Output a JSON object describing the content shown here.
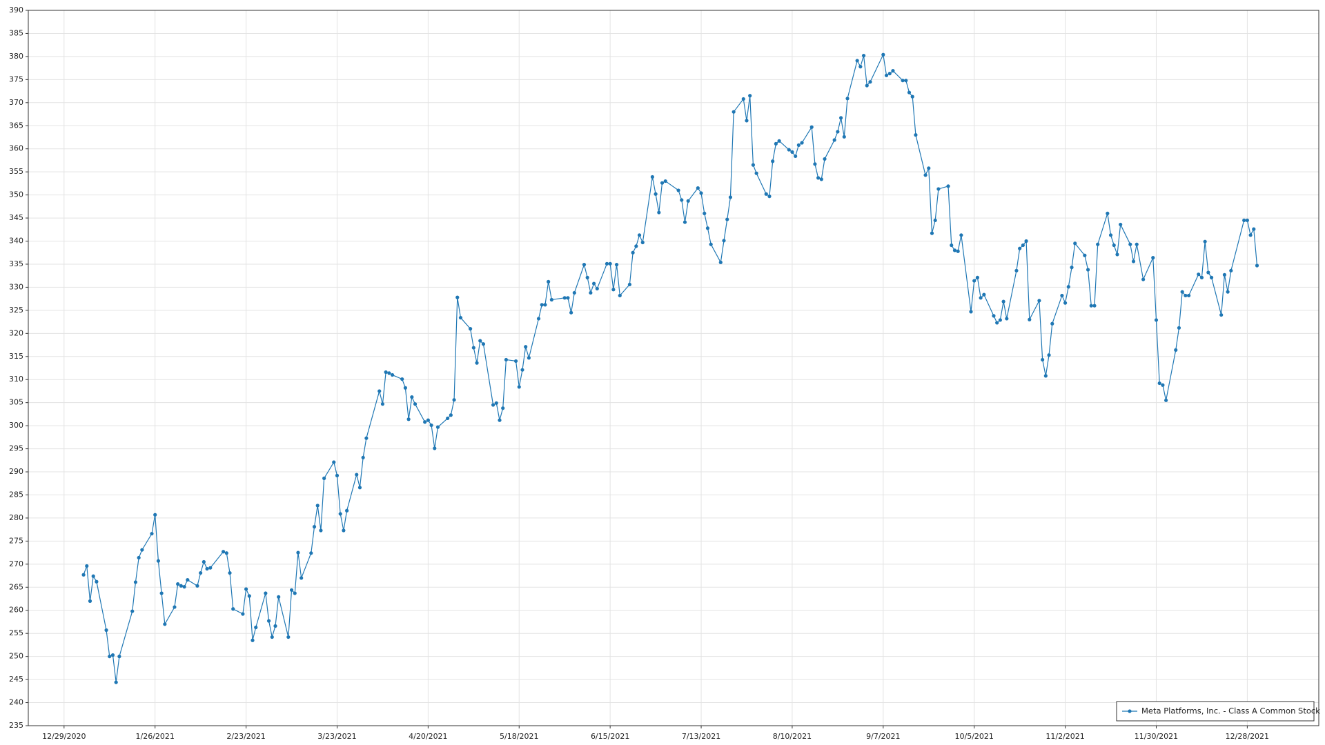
{
  "chart_data": {
    "type": "line",
    "x": [
      "1/4/2021",
      "1/5/2021",
      "1/6/2021",
      "1/7/2021",
      "1/8/2021",
      "1/11/2021",
      "1/12/2021",
      "1/13/2021",
      "1/14/2021",
      "1/15/2021",
      "1/19/2021",
      "1/20/2021",
      "1/21/2021",
      "1/22/2021",
      "1/25/2021",
      "1/26/2021",
      "1/27/2021",
      "1/28/2021",
      "1/29/2021",
      "2/1/2021",
      "2/2/2021",
      "2/3/2021",
      "2/4/2021",
      "2/5/2021",
      "2/8/2021",
      "2/9/2021",
      "2/10/2021",
      "2/11/2021",
      "2/12/2021",
      "2/16/2021",
      "2/17/2021",
      "2/18/2021",
      "2/19/2021",
      "2/22/2021",
      "2/23/2021",
      "2/24/2021",
      "2/25/2021",
      "2/26/2021",
      "3/1/2021",
      "3/2/2021",
      "3/3/2021",
      "3/4/2021",
      "3/5/2021",
      "3/8/2021",
      "3/9/2021",
      "3/10/2021",
      "3/11/2021",
      "3/12/2021",
      "3/15/2021",
      "3/16/2021",
      "3/17/2021",
      "3/18/2021",
      "3/19/2021",
      "3/22/2021",
      "3/23/2021",
      "3/24/2021",
      "3/25/2021",
      "3/26/2021",
      "3/29/2021",
      "3/30/2021",
      "3/31/2021",
      "4/1/2021",
      "4/5/2021",
      "4/6/2021",
      "4/7/2021",
      "4/8/2021",
      "4/9/2021",
      "4/12/2021",
      "4/13/2021",
      "4/14/2021",
      "4/15/2021",
      "4/16/2021",
      "4/19/2021",
      "4/20/2021",
      "4/21/2021",
      "4/22/2021",
      "4/23/2021",
      "4/26/2021",
      "4/27/2021",
      "4/28/2021",
      "4/29/2021",
      "4/30/2021",
      "5/3/2021",
      "5/4/2021",
      "5/5/2021",
      "5/6/2021",
      "5/7/2021",
      "5/10/2021",
      "5/11/2021",
      "5/12/2021",
      "5/13/2021",
      "5/14/2021",
      "5/17/2021",
      "5/18/2021",
      "5/19/2021",
      "5/20/2021",
      "5/21/2021",
      "5/24/2021",
      "5/25/2021",
      "5/26/2021",
      "5/27/2021",
      "5/28/2021",
      "6/1/2021",
      "6/2/2021",
      "6/3/2021",
      "6/4/2021",
      "6/7/2021",
      "6/8/2021",
      "6/9/2021",
      "6/10/2021",
      "6/11/2021",
      "6/14/2021",
      "6/15/2021",
      "6/16/2021",
      "6/17/2021",
      "6/18/2021",
      "6/21/2021",
      "6/22/2021",
      "6/23/2021",
      "6/24/2021",
      "6/25/2021",
      "6/28/2021",
      "6/29/2021",
      "6/30/2021",
      "7/1/2021",
      "7/2/2021",
      "7/6/2021",
      "7/7/2021",
      "7/8/2021",
      "7/9/2021",
      "7/12/2021",
      "7/13/2021",
      "7/14/2021",
      "7/15/2021",
      "7/16/2021",
      "7/19/2021",
      "7/20/2021",
      "7/21/2021",
      "7/22/2021",
      "7/23/2021",
      "7/26/2021",
      "7/27/2021",
      "7/28/2021",
      "7/29/2021",
      "7/30/2021",
      "8/2/2021",
      "8/3/2021",
      "8/4/2021",
      "8/5/2021",
      "8/6/2021",
      "8/9/2021",
      "8/10/2021",
      "8/11/2021",
      "8/12/2021",
      "8/13/2021",
      "8/16/2021",
      "8/17/2021",
      "8/18/2021",
      "8/19/2021",
      "8/20/2021",
      "8/23/2021",
      "8/24/2021",
      "8/25/2021",
      "8/26/2021",
      "8/27/2021",
      "8/30/2021",
      "8/31/2021",
      "9/1/2021",
      "9/2/2021",
      "9/3/2021",
      "9/7/2021",
      "9/8/2021",
      "9/9/2021",
      "9/10/2021",
      "9/13/2021",
      "9/14/2021",
      "9/15/2021",
      "9/16/2021",
      "9/17/2021",
      "9/20/2021",
      "9/21/2021",
      "9/22/2021",
      "9/23/2021",
      "9/24/2021",
      "9/27/2021",
      "9/28/2021",
      "9/29/2021",
      "9/30/2021",
      "10/1/2021",
      "10/4/2021",
      "10/5/2021",
      "10/6/2021",
      "10/7/2021",
      "10/8/2021",
      "10/11/2021",
      "10/12/2021",
      "10/13/2021",
      "10/14/2021",
      "10/15/2021",
      "10/18/2021",
      "10/19/2021",
      "10/20/2021",
      "10/21/2021",
      "10/22/2021",
      "10/25/2021",
      "10/26/2021",
      "10/27/2021",
      "10/28/2021",
      "10/29/2021",
      "11/1/2021",
      "11/2/2021",
      "11/3/2021",
      "11/4/2021",
      "11/5/2021",
      "11/8/2021",
      "11/9/2021",
      "11/10/2021",
      "11/11/2021",
      "11/12/2021",
      "11/15/2021",
      "11/16/2021",
      "11/17/2021",
      "11/18/2021",
      "11/19/2021",
      "11/22/2021",
      "11/23/2021",
      "11/24/2021",
      "11/26/2021",
      "11/29/2021",
      "11/30/2021",
      "12/1/2021",
      "12/2/2021",
      "12/3/2021",
      "12/6/2021",
      "12/7/2021",
      "12/8/2021",
      "12/9/2021",
      "12/10/2021",
      "12/13/2021",
      "12/14/2021",
      "12/15/2021",
      "12/16/2021",
      "12/17/2021",
      "12/20/2021",
      "12/21/2021",
      "12/22/2021",
      "12/23/2021",
      "12/27/2021",
      "12/28/2021",
      "12/29/2021",
      "12/30/2021",
      "12/31/2021"
    ],
    "series": [
      {
        "name": "Meta Platforms, Inc. - Class A Common Stock",
        "color": "#1f77b4",
        "values": [
          267.7,
          269.6,
          262,
          267.4,
          266.2,
          255.7,
          250,
          250.3,
          244.4,
          250,
          259.8,
          266.1,
          271.4,
          273.1,
          276.6,
          280.7,
          270.7,
          263.7,
          257,
          260.7,
          265.7,
          265.3,
          265.1,
          266.6,
          265.3,
          268.1,
          270.5,
          269,
          269.2,
          272.7,
          272.4,
          268.1,
          260.3,
          259.2,
          264.6,
          263.1,
          253.5,
          256.3,
          263.7,
          257.7,
          254.2,
          256.6,
          262.9,
          254.2,
          264.4,
          263.7,
          272.5,
          267,
          272.4,
          278.1,
          282.7,
          277.3,
          288.6,
          292.1,
          289.2,
          280.9,
          277.3,
          281.6,
          289.4,
          286.6,
          293.1,
          297.3,
          307.5,
          304.7,
          311.6,
          311.4,
          311,
          310.1,
          308.2,
          301.4,
          306.2,
          304.7,
          300.8,
          301.2,
          300.1,
          295.1,
          299.7,
          301.6,
          302.3,
          305.6,
          327.8,
          323.4,
          321,
          316.9,
          313.6,
          318.4,
          317.7,
          304.5,
          304.9,
          301.2,
          303.8,
          314.3,
          314,
          308.4,
          312.1,
          317.1,
          314.7,
          323.2,
          326.2,
          326.2,
          331.2,
          327.3,
          327.7,
          327.7,
          324.5,
          328.8,
          334.9,
          332.1,
          328.8,
          330.8,
          329.7,
          335.1,
          335.1,
          329.5,
          334.9,
          328.2,
          330.6,
          337.5,
          338.9,
          341.3,
          339.7,
          353.9,
          350.2,
          346.2,
          352.6,
          353,
          351,
          348.9,
          344.1,
          348.7,
          351.5,
          350.4,
          346,
          342.8,
          339.3,
          335.4,
          340.1,
          344.7,
          349.5,
          368,
          370.8,
          366.1,
          371.5,
          356.5,
          354.7,
          350.2,
          349.7,
          357.3,
          361.1,
          361.7,
          359.8,
          359.3,
          358.4,
          360.8,
          361.3,
          364.7,
          356.7,
          353.7,
          353.4,
          357.8,
          361.9,
          363.7,
          366.7,
          362.6,
          370.9,
          379.1,
          377.8,
          380.2,
          373.7,
          374.5,
          380.4,
          375.9,
          376.3,
          376.9,
          374.8,
          374.8,
          372.2,
          371.3,
          363,
          354.3,
          355.8,
          341.7,
          344.5,
          351.3,
          351.9,
          339.1,
          338,
          337.8,
          341.3,
          324.7,
          331.4,
          332.1,
          327.7,
          328.4,
          323.8,
          322.3,
          322.9,
          326.9,
          323.2,
          333.6,
          338.4,
          339.1,
          340,
          323,
          327.1,
          314.3,
          310.8,
          315.3,
          322.1,
          328.2,
          326.6,
          330.1,
          334.3,
          339.5,
          336.9,
          333.8,
          326,
          326,
          339.3,
          346,
          341.3,
          339.1,
          337.1,
          343.6,
          339.3,
          335.6,
          339.3,
          331.7,
          336.4,
          322.9,
          309.2,
          308.8,
          305.5,
          316.4,
          321.2,
          329,
          328.2,
          328.2,
          332.8,
          332.1,
          339.9,
          333.2,
          332.1,
          324,
          332.7,
          329,
          333.6,
          344.5,
          344.5,
          341.3,
          342.6,
          334.7
        ]
      }
    ],
    "xlim": [
      "12/18/2020",
      "1/19/2022"
    ],
    "xticks": [
      "12/29/2020",
      "1/26/2021",
      "2/23/2021",
      "3/23/2021",
      "4/20/2021",
      "5/18/2021",
      "6/15/2021",
      "7/13/2021",
      "8/10/2021",
      "9/7/2021",
      "10/5/2021",
      "11/2/2021",
      "11/30/2021",
      "12/28/2021"
    ],
    "ylim": [
      235,
      390
    ],
    "yticks": [
      235,
      240,
      245,
      250,
      255,
      260,
      265,
      270,
      275,
      280,
      285,
      290,
      295,
      300,
      305,
      310,
      315,
      320,
      325,
      330,
      335,
      340,
      345,
      350,
      355,
      360,
      365,
      370,
      375,
      380,
      385,
      390
    ],
    "grid": true,
    "markers": true,
    "legend": "lower right"
  }
}
